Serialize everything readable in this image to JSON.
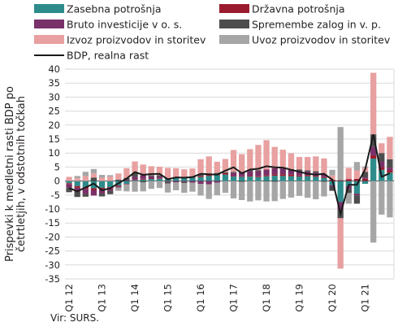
{
  "chart_data": {
    "type": "bar",
    "stacked": true,
    "ylabel": "Prispevki k medletni rasti BDP po četrtletjih, v odstotnih točkah",
    "ylim": [
      -35,
      40
    ],
    "yticks": [
      40,
      35,
      30,
      25,
      20,
      15,
      10,
      5,
      0,
      -5,
      -10,
      -15,
      -20,
      -25,
      -30,
      -35
    ],
    "grid": true,
    "legend_position": "top",
    "x_tick_labels": [
      "Q1 12",
      "Q1 13",
      "Q1 14",
      "Q1 15",
      "Q1 16",
      "Q1 17",
      "Q1 18",
      "Q1 19",
      "Q1 20",
      "Q1 21"
    ],
    "categories": [
      "Q1 12",
      "Q2 12",
      "Q3 12",
      "Q4 12",
      "Q1 13",
      "Q2 13",
      "Q3 13",
      "Q4 13",
      "Q1 14",
      "Q2 14",
      "Q3 14",
      "Q4 14",
      "Q1 15",
      "Q2 15",
      "Q3 15",
      "Q4 15",
      "Q1 16",
      "Q2 16",
      "Q3 16",
      "Q4 16",
      "Q1 17",
      "Q2 17",
      "Q3 17",
      "Q4 17",
      "Q1 18",
      "Q2 18",
      "Q3 18",
      "Q4 18",
      "Q1 19",
      "Q2 19",
      "Q3 19",
      "Q4 19",
      "Q1 20",
      "Q2 20",
      "Q3 20",
      "Q4 20",
      "Q1 21",
      "Q2 21",
      "Q3 21",
      "Q4 21"
    ],
    "series": [
      {
        "name": "Zasebna potrošnja",
        "color": "#2e8b8b",
        "values": [
          -0.8,
          -1.8,
          -2.2,
          -2.6,
          -2.4,
          -2.2,
          -1.6,
          -1.0,
          0.3,
          0.5,
          0.7,
          0.8,
          0.9,
          1.0,
          1.1,
          1.2,
          1.4,
          1.8,
          2.1,
          2.3,
          1.6,
          1.5,
          1.6,
          1.4,
          1.7,
          1.9,
          1.8,
          1.7,
          1.6,
          1.7,
          1.5,
          1.1,
          -1.5,
          -7.5,
          -1.8,
          -4.5,
          -1.0,
          8.0,
          4.0,
          3.0
        ]
      },
      {
        "name": "Državna potrošnja",
        "color": "#9b1b2e",
        "values": [
          -0.4,
          -0.6,
          -0.6,
          -0.7,
          -0.6,
          -0.5,
          -0.3,
          -0.2,
          0.2,
          0.3,
          0.2,
          0.2,
          0.2,
          0.2,
          0.3,
          0.3,
          0.4,
          0.4,
          0.5,
          0.5,
          0.2,
          0.2,
          0.3,
          0.3,
          0.4,
          0.5,
          0.6,
          0.6,
          0.4,
          0.4,
          0.3,
          0.3,
          0.5,
          0.3,
          0.7,
          0.8,
          0.8,
          1.2,
          1.0,
          0.8
        ]
      },
      {
        "name": "Bruto investicije v o. s.",
        "color": "#7a3068",
        "values": [
          -1.2,
          -1.5,
          -1.8,
          -1.9,
          -1.5,
          -0.8,
          -0.4,
          0.3,
          1.0,
          1.3,
          0.8,
          0.6,
          -0.3,
          -0.5,
          -0.3,
          -0.6,
          -1.0,
          -1.2,
          -0.6,
          0.0,
          1.2,
          1.4,
          1.6,
          1.8,
          2.0,
          2.2,
          2.1,
          1.8,
          1.6,
          1.3,
          1.2,
          1.0,
          -0.5,
          -2.8,
          -1.0,
          -0.6,
          0.5,
          3.0,
          2.0,
          1.0
        ]
      },
      {
        "name": "Spremembe zalog in v. p.",
        "color": "#4d4d4d",
        "values": [
          -1.5,
          -1.8,
          -1.0,
          1.2,
          -1.0,
          -1.2,
          0.5,
          0.8,
          1.3,
          -0.5,
          0.4,
          0.5,
          -0.6,
          0.2,
          -0.4,
          0.0,
          0.5,
          0.4,
          0.3,
          0.3,
          0.3,
          -0.3,
          0.4,
          0.4,
          -0.2,
          -0.3,
          0.2,
          0.2,
          0.5,
          0.4,
          0.5,
          -0.3,
          -1.5,
          -3.0,
          -1.5,
          -3.0,
          2.0,
          4.5,
          3.0,
          3.0
        ]
      },
      {
        "name": "Izvoz proizvodov in storitev",
        "color": "#e8a0a0",
        "values": [
          1.5,
          1.0,
          1.8,
          1.5,
          1.2,
          1.6,
          2.2,
          3.5,
          4.2,
          3.8,
          3.2,
          3.0,
          3.6,
          3.2,
          2.8,
          3.0,
          5.5,
          6.2,
          4.0,
          4.8,
          7.8,
          6.5,
          7.5,
          9.0,
          10.5,
          7.6,
          6.5,
          5.6,
          4.5,
          4.8,
          5.3,
          5.7,
          1.5,
          -18.0,
          4.0,
          3.0,
          1.5,
          22.0,
          3.5,
          8.0
        ]
      },
      {
        "name": "Uvoz proizvodov in storitev",
        "color": "#a6a6a6",
        "values": [
          -0.2,
          0.8,
          1.5,
          1.6,
          1.0,
          0.5,
          -1.2,
          -2.5,
          -3.8,
          -3.2,
          -2.8,
          -2.5,
          -3.2,
          -2.8,
          -3.5,
          -3.2,
          -4.2,
          -5.2,
          -4.5,
          -4.2,
          -6.2,
          -6.5,
          -7.3,
          -6.9,
          -7.1,
          -6.9,
          -6.4,
          -5.9,
          -5.3,
          -6.0,
          -6.5,
          -5.2,
          2.0,
          19.0,
          -3.8,
          3.0,
          0.4,
          -22.0,
          -12.0,
          -13.0
        ]
      }
    ],
    "line": {
      "name": "BDP, realna rast",
      "color": "#1a1a1a",
      "values": [
        -2.5,
        -3.7,
        -2.3,
        -0.9,
        -3.3,
        -2.6,
        -0.8,
        0.9,
        3.2,
        2.2,
        2.5,
        2.6,
        0.6,
        1.3,
        1.2,
        1.4,
        2.6,
        2.4,
        2.3,
        3.7,
        4.9,
        2.8,
        4.1,
        4.4,
        5.3,
        4.9,
        4.8,
        4.0,
        3.3,
        2.6,
        2.3,
        2.6,
        0.5,
        -11.7,
        -1.4,
        -1.3,
        4.2,
        16.7,
        1.5,
        2.8
      ]
    }
  },
  "source": "Vir: SURS."
}
